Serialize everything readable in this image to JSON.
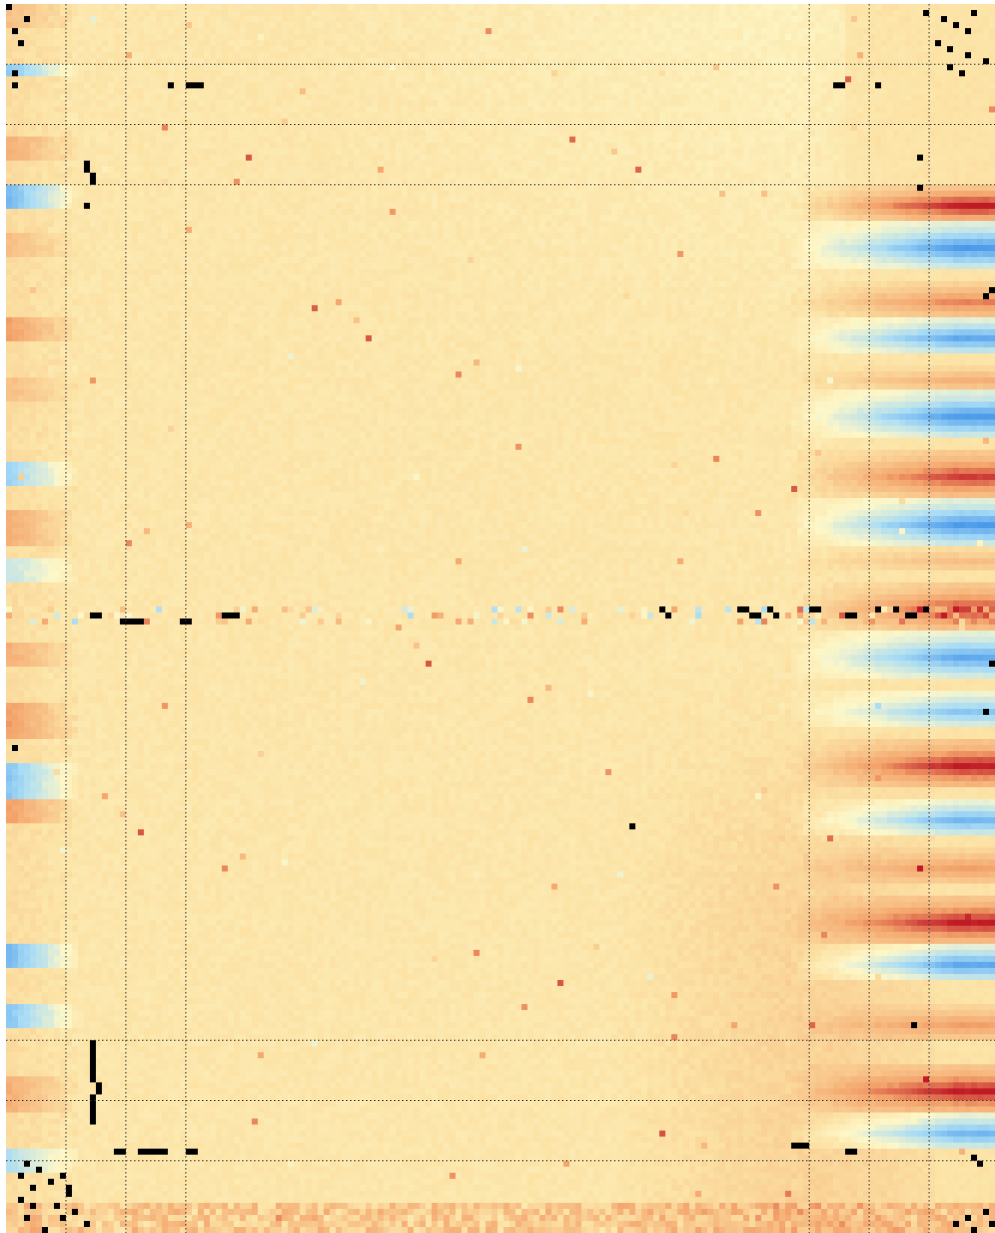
{
  "chart_data": {
    "type": "heatmap",
    "title": "",
    "xlabel": "",
    "ylabel": "",
    "grid": {
      "columns": 165,
      "rows": 204,
      "vertical_dashed_lines_after_column": [
        10,
        20,
        30,
        134,
        144,
        154
      ],
      "horizontal_dashed_lines_after_row": [
        10,
        20,
        30,
        172,
        182,
        192
      ]
    },
    "color_scale": {
      "name": "diverging",
      "stops": [
        "#3a8ee8",
        "#a9dcf5",
        "#fdf7c8",
        "#fce3a6",
        "#f3a26a",
        "#c01a26"
      ],
      "missing_color": "#000000"
    },
    "colors": {
      "background": "#ffffff",
      "grid_line": "#333333"
    },
    "patterns": {
      "missing_cells": [
        [
          0,
          0
        ],
        [
          2,
          3
        ],
        [
          4,
          1
        ],
        [
          6,
          2
        ],
        [
          11,
          1
        ],
        [
          13,
          1
        ],
        [
          1,
          153
        ],
        [
          2,
          156
        ],
        [
          3,
          158
        ],
        [
          1,
          161
        ],
        [
          4,
          160
        ],
        [
          6,
          155
        ],
        [
          7,
          157
        ],
        [
          8,
          160
        ],
        [
          9,
          163
        ],
        [
          10,
          157
        ],
        [
          11,
          159
        ],
        [
          13,
          30
        ],
        [
          13,
          31
        ],
        [
          13,
          32
        ],
        [
          13,
          27
        ],
        [
          13,
          138
        ],
        [
          13,
          139
        ],
        [
          13,
          145
        ],
        [
          26,
          13
        ],
        [
          27,
          13
        ],
        [
          28,
          14
        ],
        [
          29,
          14
        ],
        [
          33,
          13
        ],
        [
          25,
          152
        ],
        [
          30,
          152
        ],
        [
          48,
          163
        ],
        [
          47,
          164
        ],
        [
          101,
          14
        ],
        [
          101,
          15
        ],
        [
          102,
          19
        ],
        [
          102,
          20
        ],
        [
          102,
          21
        ],
        [
          102,
          22
        ],
        [
          102,
          29
        ],
        [
          102,
          30
        ],
        [
          101,
          36
        ],
        [
          101,
          37
        ],
        [
          101,
          38
        ],
        [
          100,
          109
        ],
        [
          101,
          110
        ],
        [
          100,
          122
        ],
        [
          100,
          123
        ],
        [
          101,
          124
        ],
        [
          101,
          125
        ],
        [
          100,
          127
        ],
        [
          101,
          128
        ],
        [
          100,
          134
        ],
        [
          100,
          135
        ],
        [
          101,
          140
        ],
        [
          101,
          141
        ],
        [
          100,
          145
        ],
        [
          100,
          148
        ],
        [
          101,
          150
        ],
        [
          101,
          151
        ],
        [
          100,
          153
        ],
        [
          109,
          164
        ],
        [
          117,
          163
        ],
        [
          123,
          1
        ],
        [
          136,
          104
        ],
        [
          169,
          151
        ],
        [
          172,
          14
        ],
        [
          173,
          14
        ],
        [
          174,
          14
        ],
        [
          175,
          14
        ],
        [
          176,
          14
        ],
        [
          177,
          14
        ],
        [
          178,
          14
        ],
        [
          179,
          15
        ],
        [
          180,
          15
        ],
        [
          181,
          14
        ],
        [
          182,
          14
        ],
        [
          183,
          14
        ],
        [
          184,
          14
        ],
        [
          185,
          14
        ],
        [
          190,
          18
        ],
        [
          190,
          19
        ],
        [
          190,
          22
        ],
        [
          190,
          23
        ],
        [
          190,
          24
        ],
        [
          190,
          25
        ],
        [
          190,
          26
        ],
        [
          190,
          30
        ],
        [
          190,
          31
        ],
        [
          189,
          131
        ],
        [
          189,
          132
        ],
        [
          189,
          133
        ],
        [
          190,
          140
        ],
        [
          190,
          141
        ],
        [
          192,
          3
        ],
        [
          193,
          5
        ],
        [
          194,
          9
        ],
        [
          195,
          7
        ],
        [
          196,
          4
        ],
        [
          197,
          10
        ],
        [
          198,
          2
        ],
        [
          199,
          8
        ],
        [
          200,
          11
        ],
        [
          201,
          3
        ],
        [
          202,
          13
        ],
        [
          203,
          6
        ],
        [
          194,
          2
        ],
        [
          196,
          10
        ],
        [
          199,
          4
        ],
        [
          201,
          9
        ],
        [
          191,
          161
        ],
        [
          192,
          162
        ],
        [
          200,
          163
        ],
        [
          201,
          160
        ],
        [
          202,
          158
        ],
        [
          203,
          161
        ],
        [
          202,
          164
        ]
      ],
      "right_band_rows": [
        [
          30,
          36,
          1.0
        ],
        [
          36,
          44,
          -0.9
        ],
        [
          46,
          52,
          0.7
        ],
        [
          52,
          58,
          -0.8
        ],
        [
          60,
          64,
          0.5
        ],
        [
          64,
          72,
          -0.9
        ],
        [
          74,
          82,
          0.9
        ],
        [
          82,
          90,
          -0.9
        ],
        [
          90,
          94,
          0.4
        ],
        [
          96,
          104,
          0.9
        ],
        [
          104,
          112,
          -0.8
        ],
        [
          114,
          120,
          -0.6
        ],
        [
          122,
          130,
          1.0
        ],
        [
          132,
          138,
          -0.7
        ],
        [
          140,
          146,
          0.6
        ],
        [
          148,
          156,
          1.0
        ],
        [
          156,
          162,
          -0.8
        ],
        [
          166,
          172,
          0.6
        ],
        [
          176,
          184,
          1.0
        ],
        [
          184,
          190,
          -0.7
        ]
      ],
      "left_band_rows": [
        [
          0,
          4,
          0.4
        ],
        [
          10,
          12,
          -0.6
        ],
        [
          22,
          26,
          0.5
        ],
        [
          30,
          34,
          -0.7
        ],
        [
          38,
          42,
          0.4
        ],
        [
          52,
          56,
          0.6
        ],
        [
          62,
          66,
          0.4
        ],
        [
          76,
          80,
          -0.5
        ],
        [
          84,
          90,
          0.5
        ],
        [
          92,
          96,
          -0.3
        ],
        [
          106,
          110,
          0.5
        ],
        [
          116,
          122,
          0.6
        ],
        [
          126,
          132,
          -0.6
        ],
        [
          132,
          136,
          0.6
        ],
        [
          156,
          160,
          -0.7
        ],
        [
          166,
          170,
          -0.6
        ],
        [
          178,
          184,
          0.5
        ],
        [
          190,
          194,
          -0.4
        ]
      ]
    }
  }
}
